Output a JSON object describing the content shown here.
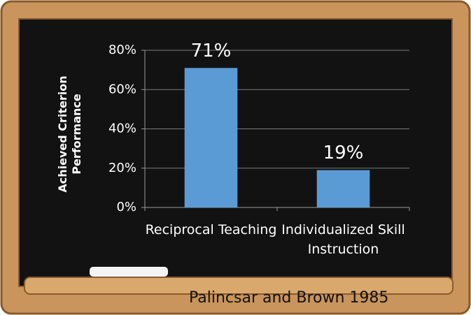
{
  "chart_data": {
    "type": "bar",
    "y_label": "Achieved Criterion Performance",
    "categories": [
      "Reciprocal Teaching",
      "Individualized Skill Instruction"
    ],
    "values": [
      71,
      19
    ],
    "value_labels": [
      "71%",
      "19%"
    ],
    "color": "#5b9bd5",
    "ylim": [
      0,
      80
    ],
    "yticks": [
      {
        "value": 0,
        "label": "0%"
      },
      {
        "value": 20,
        "label": "20%"
      },
      {
        "value": 40,
        "label": "40%"
      },
      {
        "value": 60,
        "label": "60%"
      },
      {
        "value": 80,
        "label": "80%"
      }
    ],
    "grid": true,
    "source": "Palincsar and Brown 1985"
  }
}
